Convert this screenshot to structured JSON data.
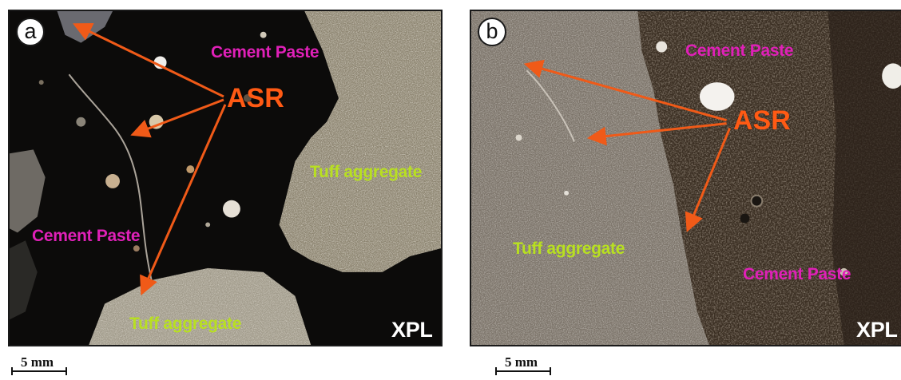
{
  "panels": [
    {
      "badge": "a",
      "labels": {
        "cement_paste_1": "Cement Paste",
        "cement_paste_2": "Cement Paste",
        "tuff_1": "Tuff aggregate",
        "tuff_2": "Tuff aggregate",
        "asr": "ASR",
        "mode": "XPL"
      },
      "scale": "5 mm"
    },
    {
      "badge": "b",
      "labels": {
        "cement_paste_1": "Cement Paste",
        "cement_paste_2": "Cement Paste",
        "tuff_1": "Tuff aggregate",
        "asr": "ASR",
        "mode": "XPL"
      },
      "scale": "5 mm"
    }
  ],
  "colors": {
    "cement_label": "#e020b8",
    "tuff_label": "#b8e020",
    "asr_label": "#ff5a14",
    "arrow": "#f05a18",
    "panel_a_background": "#0e0d0c",
    "panel_b_background": "#7a7066"
  }
}
